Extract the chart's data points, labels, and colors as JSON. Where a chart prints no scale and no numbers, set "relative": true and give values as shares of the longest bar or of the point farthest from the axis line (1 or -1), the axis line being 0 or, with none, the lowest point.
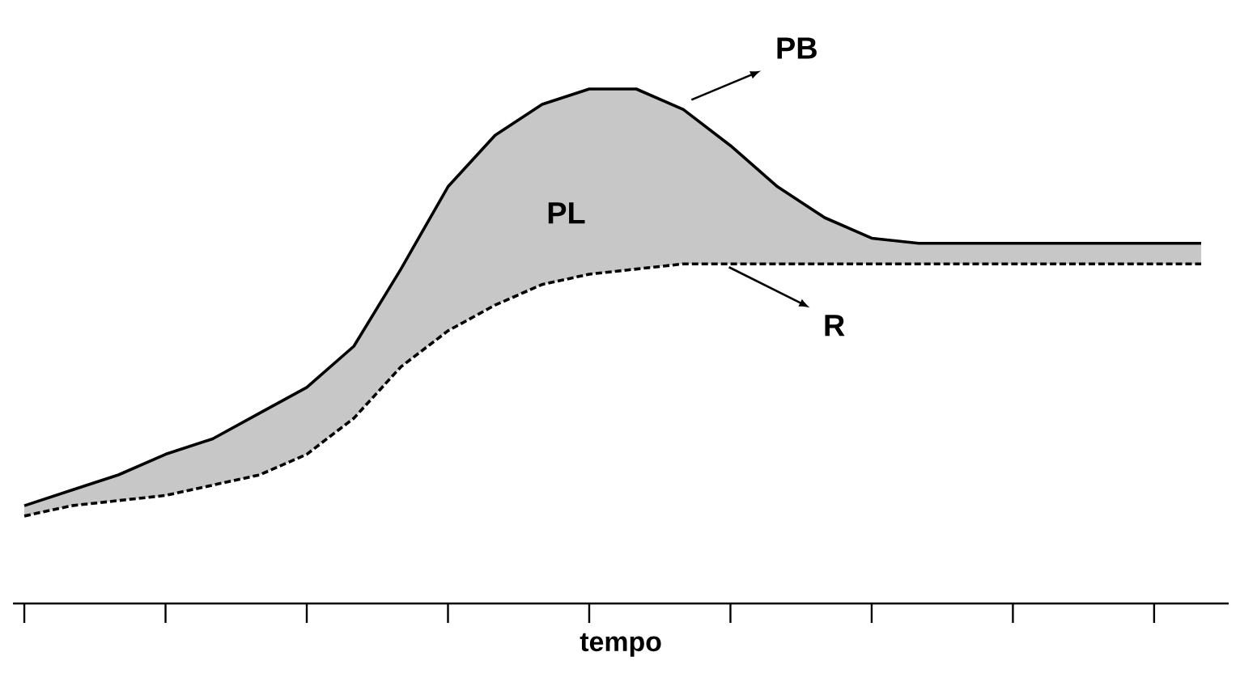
{
  "chart_data": {
    "type": "line",
    "relative": true,
    "xlabel": "tempo",
    "categories": [
      null,
      null,
      null,
      null,
      null,
      null,
      null,
      null,
      null,
      null,
      null,
      null,
      null,
      null,
      null,
      null,
      null,
      null,
      null,
      null,
      null,
      null,
      null,
      null,
      null,
      null
    ],
    "series": [
      {
        "name": "PB",
        "color": "#000000",
        "line_style": "solid",
        "values": [
          0.19,
          0.22,
          0.25,
          0.29,
          0.32,
          0.37,
          0.42,
          0.5,
          0.65,
          0.81,
          0.91,
          0.97,
          1,
          1,
          0.96,
          0.89,
          0.81,
          0.75,
          0.71,
          0.7,
          0.7,
          0.7,
          0.7,
          0.7,
          0.7,
          0.7
        ],
        "lower": [
          0.17,
          0.19,
          0.2,
          0.21,
          0.23,
          0.25,
          0.29,
          0.36,
          0.46,
          0.53,
          0.58,
          0.62,
          0.64,
          0.65,
          0.66,
          0.66,
          0.66,
          0.66,
          0.66,
          0.66,
          0.66,
          0.66,
          0.66,
          0.66,
          0.66,
          0.66
        ],
        "upper": [
          0.19,
          0.22,
          0.25,
          0.29,
          0.32,
          0.37,
          0.42,
          0.5,
          0.65,
          0.81,
          0.91,
          0.97,
          1,
          1,
          0.96,
          0.89,
          0.81,
          0.75,
          0.71,
          0.7,
          0.7,
          0.7,
          0.7,
          0.7,
          0.7,
          0.7
        ]
      },
      {
        "name": "R",
        "color": "#000000",
        "line_style": "dashed",
        "values": [
          0.17,
          0.19,
          0.2,
          0.21,
          0.23,
          0.25,
          0.29,
          0.36,
          0.46,
          0.53,
          0.58,
          0.62,
          0.64,
          0.65,
          0.66,
          0.66,
          0.66,
          0.66,
          0.66,
          0.66,
          0.66,
          0.66,
          0.66,
          0.66,
          0.66,
          0.66
        ]
      }
    ],
    "annotations": [
      "PL"
    ]
  }
}
